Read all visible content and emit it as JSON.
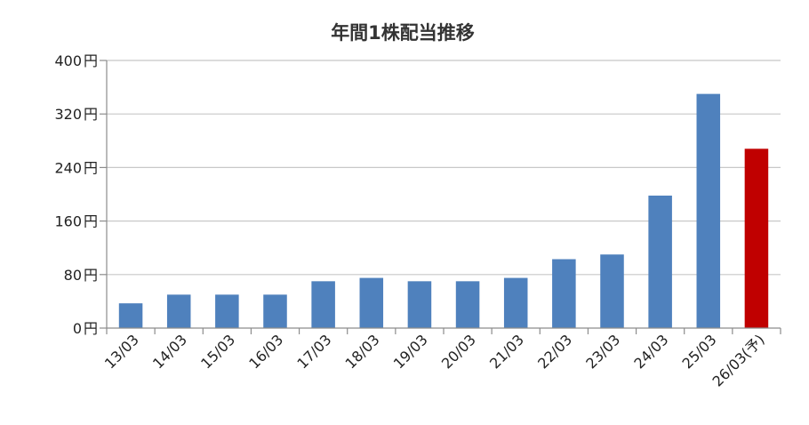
{
  "chart_data": {
    "type": "bar",
    "title": "年間1株配当推移",
    "xlabel": "",
    "ylabel": "",
    "ylim": [
      0,
      400
    ],
    "yticks": [
      0,
      80,
      160,
      240,
      320,
      400
    ],
    "ytick_suffix": " 円",
    "grid": true,
    "categories": [
      "13/03",
      "14/03",
      "15/03",
      "16/03",
      "17/03",
      "18/03",
      "19/03",
      "20/03",
      "21/03",
      "22/03",
      "23/03",
      "24/03",
      "25/03",
      "26/03(予)"
    ],
    "values": [
      37,
      50,
      50,
      50,
      70,
      75,
      70,
      70,
      75,
      103,
      110,
      198,
      350,
      268
    ],
    "colors": {
      "actual": "#4f81bd",
      "forecast": "#c00000",
      "grid": "#c8c8c8",
      "axis": "#8c8c8c"
    },
    "forecast_index": 13
  }
}
